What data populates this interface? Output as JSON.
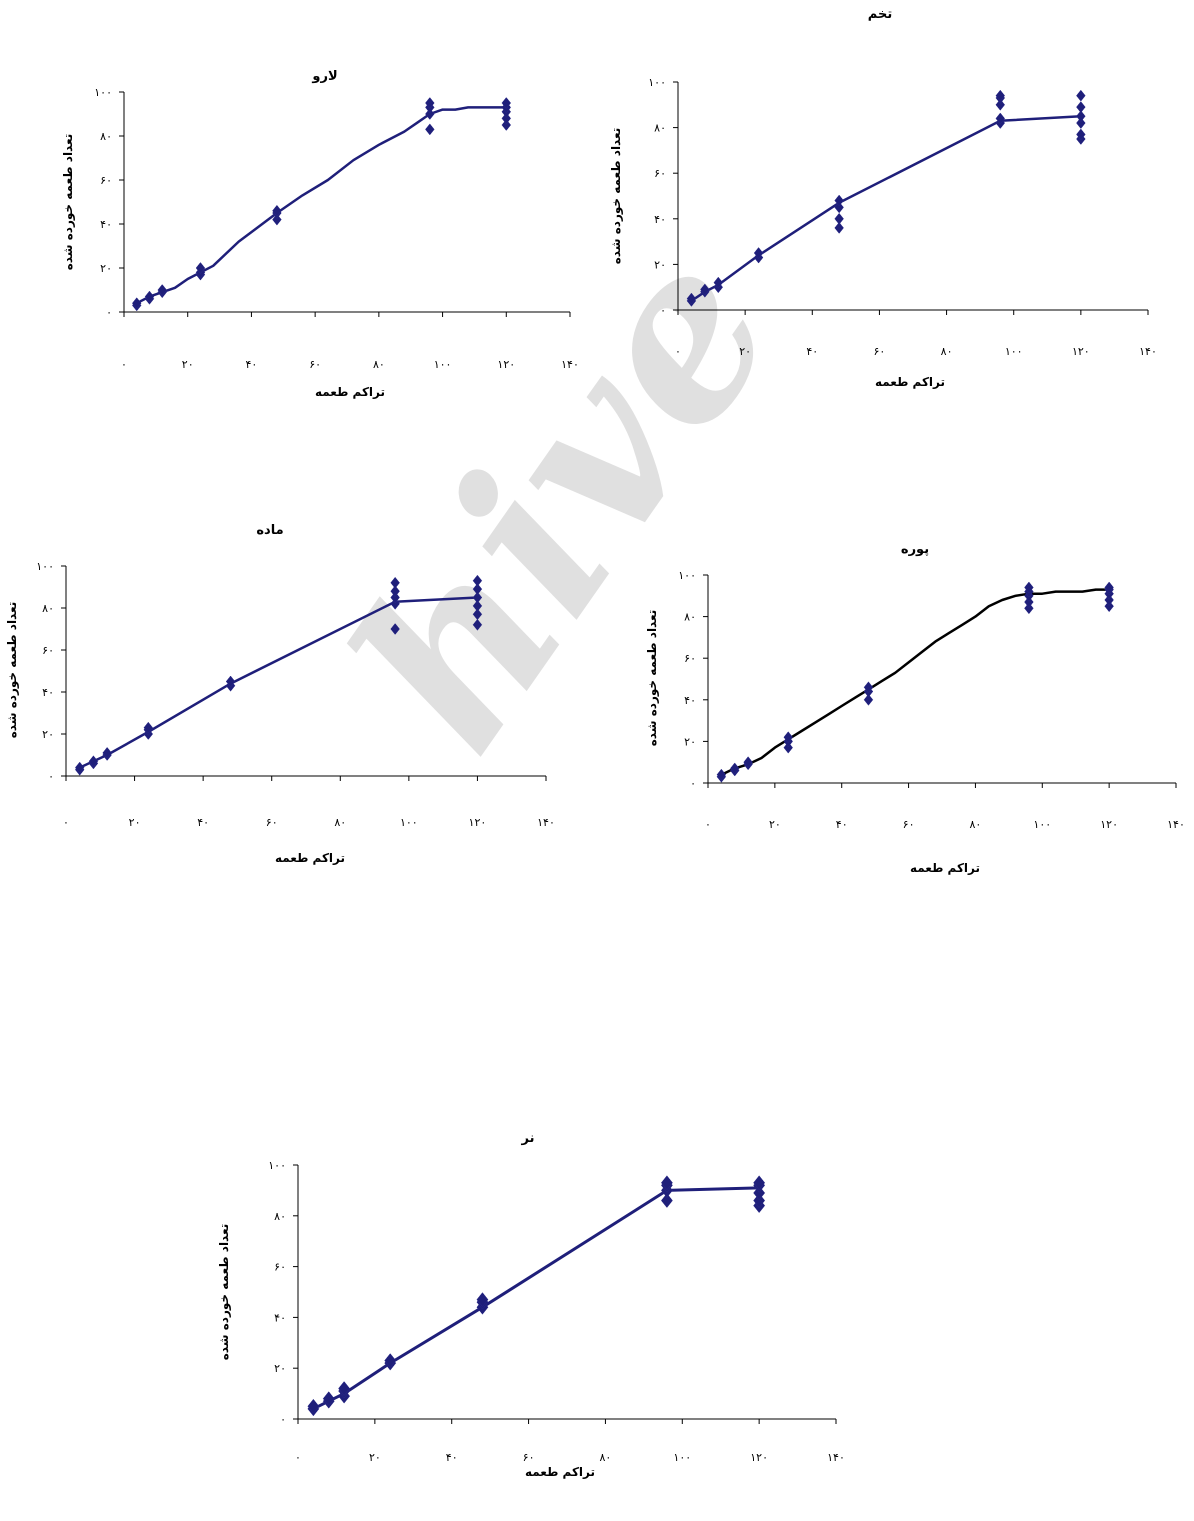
{
  "colors": {
    "line": "#1f1f7a",
    "line_black": "#000000",
    "marker": "#1f1f7a",
    "axis": "#000000"
  },
  "chart_data": [
    {
      "id": "egg",
      "type": "scatter",
      "title": "تخم",
      "xlabel": "تراکم طعمه",
      "ylabel": "تعداد طعمه خورده شده",
      "xlim": [
        0,
        140
      ],
      "ylim": [
        0,
        100
      ],
      "x_ticks": [
        "۰",
        "۲۰",
        "۴۰",
        "۶۰",
        "۸۰",
        "۱۰۰",
        "۱۲۰",
        "۱۴۰"
      ],
      "y_ticks": [
        "۰",
        "۲۰",
        "۴۰",
        "۶۰",
        "۸۰",
        "۱۰۰"
      ],
      "fit_line": {
        "x": [
          4,
          8,
          12,
          24,
          48,
          96,
          120
        ],
        "y": [
          4,
          8,
          11,
          24,
          47,
          83,
          85
        ]
      },
      "points": [
        {
          "x": 4,
          "y": 4
        },
        {
          "x": 4,
          "y": 5
        },
        {
          "x": 8,
          "y": 8
        },
        {
          "x": 8,
          "y": 9
        },
        {
          "x": 12,
          "y": 10
        },
        {
          "x": 12,
          "y": 12
        },
        {
          "x": 24,
          "y": 23
        },
        {
          "x": 24,
          "y": 25
        },
        {
          "x": 48,
          "y": 36
        },
        {
          "x": 48,
          "y": 40
        },
        {
          "x": 48,
          "y": 45
        },
        {
          "x": 48,
          "y": 48
        },
        {
          "x": 96,
          "y": 82
        },
        {
          "x": 96,
          "y": 84
        },
        {
          "x": 96,
          "y": 90
        },
        {
          "x": 96,
          "y": 93
        },
        {
          "x": 96,
          "y": 94
        },
        {
          "x": 120,
          "y": 75
        },
        {
          "x": 120,
          "y": 77
        },
        {
          "x": 120,
          "y": 82
        },
        {
          "x": 120,
          "y": 85
        },
        {
          "x": 120,
          "y": 89
        },
        {
          "x": 120,
          "y": 94
        }
      ]
    },
    {
      "id": "larva",
      "type": "scatter",
      "title": "لارو",
      "xlabel": "تراکم طعمه",
      "ylabel": "تعداد طعمه خورده شده",
      "xlim": [
        0,
        140
      ],
      "ylim": [
        0,
        100
      ],
      "x_ticks": [
        "۰",
        "۲۰",
        "۴۰",
        "۶۰",
        "۸۰",
        "۱۰۰",
        "۱۲۰",
        "۱۴۰"
      ],
      "y_ticks": [
        "۰",
        "۲۰",
        "۴۰",
        "۶۰",
        "۸۰",
        "۱۰۰"
      ],
      "fit_line": {
        "x": [
          4,
          8,
          12,
          16,
          20,
          24,
          28,
          36,
          48,
          56,
          64,
          72,
          80,
          88,
          92,
          96,
          100,
          104,
          108,
          112,
          116,
          120
        ],
        "y": [
          4,
          7,
          9,
          11,
          15,
          18,
          21,
          32,
          45,
          53,
          60,
          69,
          76,
          82,
          86,
          90,
          92,
          92,
          93,
          93,
          93,
          93
        ]
      },
      "points": [
        {
          "x": 4,
          "y": 3
        },
        {
          "x": 4,
          "y": 4
        },
        {
          "x": 8,
          "y": 6
        },
        {
          "x": 8,
          "y": 7
        },
        {
          "x": 12,
          "y": 9
        },
        {
          "x": 12,
          "y": 10
        },
        {
          "x": 24,
          "y": 17
        },
        {
          "x": 24,
          "y": 18
        },
        {
          "x": 24,
          "y": 20
        },
        {
          "x": 48,
          "y": 42
        },
        {
          "x": 48,
          "y": 45
        },
        {
          "x": 48,
          "y": 46
        },
        {
          "x": 96,
          "y": 83
        },
        {
          "x": 96,
          "y": 90
        },
        {
          "x": 96,
          "y": 93
        },
        {
          "x": 96,
          "y": 95
        },
        {
          "x": 120,
          "y": 85
        },
        {
          "x": 120,
          "y": 88
        },
        {
          "x": 120,
          "y": 91
        },
        {
          "x": 120,
          "y": 93
        },
        {
          "x": 120,
          "y": 95
        }
      ]
    },
    {
      "id": "nymph",
      "type": "scatter",
      "title": "پوره",
      "xlabel": "تراکم طعمه",
      "ylabel": "تعداد طعمه خورده شده",
      "xlim": [
        0,
        140
      ],
      "ylim": [
        0,
        100
      ],
      "x_ticks": [
        "۰",
        "۲۰",
        "۴۰",
        "۶۰",
        "۸۰",
        "۱۰۰",
        "۱۲۰",
        "۱۴۰"
      ],
      "y_ticks": [
        "۰",
        "۲۰",
        "۴۰",
        "۶۰",
        "۸۰",
        "۱۰۰"
      ],
      "line_color": "black",
      "fit_line": {
        "x": [
          4,
          8,
          12,
          16,
          20,
          24,
          28,
          32,
          36,
          40,
          44,
          48,
          52,
          56,
          60,
          64,
          68,
          72,
          76,
          80,
          84,
          88,
          92,
          96,
          100,
          104,
          108,
          112,
          116,
          120
        ],
        "y": [
          4,
          7,
          9,
          12,
          17,
          21,
          25,
          29,
          33,
          37,
          41,
          45,
          49,
          53,
          58,
          63,
          68,
          72,
          76,
          80,
          85,
          88,
          90,
          91,
          91,
          92,
          92,
          92,
          93,
          93
        ]
      },
      "points": [
        {
          "x": 4,
          "y": 3
        },
        {
          "x": 4,
          "y": 4
        },
        {
          "x": 8,
          "y": 6
        },
        {
          "x": 8,
          "y": 7
        },
        {
          "x": 12,
          "y": 9
        },
        {
          "x": 12,
          "y": 10
        },
        {
          "x": 24,
          "y": 17
        },
        {
          "x": 24,
          "y": 20
        },
        {
          "x": 24,
          "y": 22
        },
        {
          "x": 48,
          "y": 40
        },
        {
          "x": 48,
          "y": 44
        },
        {
          "x": 48,
          "y": 46
        },
        {
          "x": 96,
          "y": 84
        },
        {
          "x": 96,
          "y": 87
        },
        {
          "x": 96,
          "y": 90
        },
        {
          "x": 96,
          "y": 92
        },
        {
          "x": 96,
          "y": 94
        },
        {
          "x": 120,
          "y": 85
        },
        {
          "x": 120,
          "y": 88
        },
        {
          "x": 120,
          "y": 91
        },
        {
          "x": 120,
          "y": 93
        },
        {
          "x": 120,
          "y": 94
        }
      ]
    },
    {
      "id": "female",
      "type": "scatter",
      "title": "ماده",
      "xlabel": "تراکم طعمه",
      "ylabel": "تعداد طعمه خورده شده",
      "xlim": [
        0,
        140
      ],
      "ylim": [
        0,
        100
      ],
      "x_ticks": [
        "۰",
        "۲۰",
        "۴۰",
        "۶۰",
        "۸۰",
        "۱۰۰",
        "۱۲۰",
        "۱۴۰"
      ],
      "y_ticks": [
        "۰",
        "۲۰",
        "۴۰",
        "۶۰",
        "۸۰",
        "۱۰۰"
      ],
      "fit_line": {
        "x": [
          4,
          8,
          12,
          24,
          48,
          96,
          120
        ],
        "y": [
          4,
          7,
          10,
          21,
          44,
          83,
          85
        ]
      },
      "points": [
        {
          "x": 4,
          "y": 3
        },
        {
          "x": 4,
          "y": 4
        },
        {
          "x": 8,
          "y": 6
        },
        {
          "x": 8,
          "y": 7
        },
        {
          "x": 12,
          "y": 10
        },
        {
          "x": 12,
          "y": 11
        },
        {
          "x": 24,
          "y": 20
        },
        {
          "x": 24,
          "y": 22
        },
        {
          "x": 24,
          "y": 23
        },
        {
          "x": 48,
          "y": 43
        },
        {
          "x": 48,
          "y": 45
        },
        {
          "x": 96,
          "y": 70
        },
        {
          "x": 96,
          "y": 82
        },
        {
          "x": 96,
          "y": 85
        },
        {
          "x": 96,
          "y": 88
        },
        {
          "x": 96,
          "y": 92
        },
        {
          "x": 120,
          "y": 72
        },
        {
          "x": 120,
          "y": 77
        },
        {
          "x": 120,
          "y": 81
        },
        {
          "x": 120,
          "y": 85
        },
        {
          "x": 120,
          "y": 89
        },
        {
          "x": 120,
          "y": 93
        }
      ]
    },
    {
      "id": "male",
      "type": "scatter",
      "title": "نر",
      "xlabel": "تراکم طعمه",
      "ylabel": "تعداد طعمه خورده شده",
      "xlim": [
        0,
        140
      ],
      "ylim": [
        0,
        100
      ],
      "x_ticks": [
        "۰",
        "۲۰",
        "۴۰",
        "۶۰",
        "۸۰",
        "۱۰۰",
        "۱۲۰",
        "۱۴۰"
      ],
      "y_ticks": [
        "۰",
        "۲۰",
        "۴۰",
        "۶۰",
        "۸۰",
        "۱۰۰"
      ],
      "fit_line": {
        "x": [
          4,
          8,
          12,
          24,
          48,
          96,
          120
        ],
        "y": [
          4,
          7,
          10,
          22,
          44,
          90,
          91
        ]
      },
      "points": [
        {
          "x": 4,
          "y": 4
        },
        {
          "x": 4,
          "y": 5
        },
        {
          "x": 8,
          "y": 7
        },
        {
          "x": 8,
          "y": 8
        },
        {
          "x": 12,
          "y": 9
        },
        {
          "x": 12,
          "y": 11
        },
        {
          "x": 12,
          "y": 12
        },
        {
          "x": 24,
          "y": 22
        },
        {
          "x": 24,
          "y": 23
        },
        {
          "x": 48,
          "y": 44
        },
        {
          "x": 48,
          "y": 46
        },
        {
          "x": 48,
          "y": 47
        },
        {
          "x": 96,
          "y": 86
        },
        {
          "x": 96,
          "y": 90
        },
        {
          "x": 96,
          "y": 92
        },
        {
          "x": 96,
          "y": 93
        },
        {
          "x": 120,
          "y": 84
        },
        {
          "x": 120,
          "y": 86
        },
        {
          "x": 120,
          "y": 89
        },
        {
          "x": 120,
          "y": 92
        },
        {
          "x": 120,
          "y": 93
        }
      ]
    }
  ]
}
